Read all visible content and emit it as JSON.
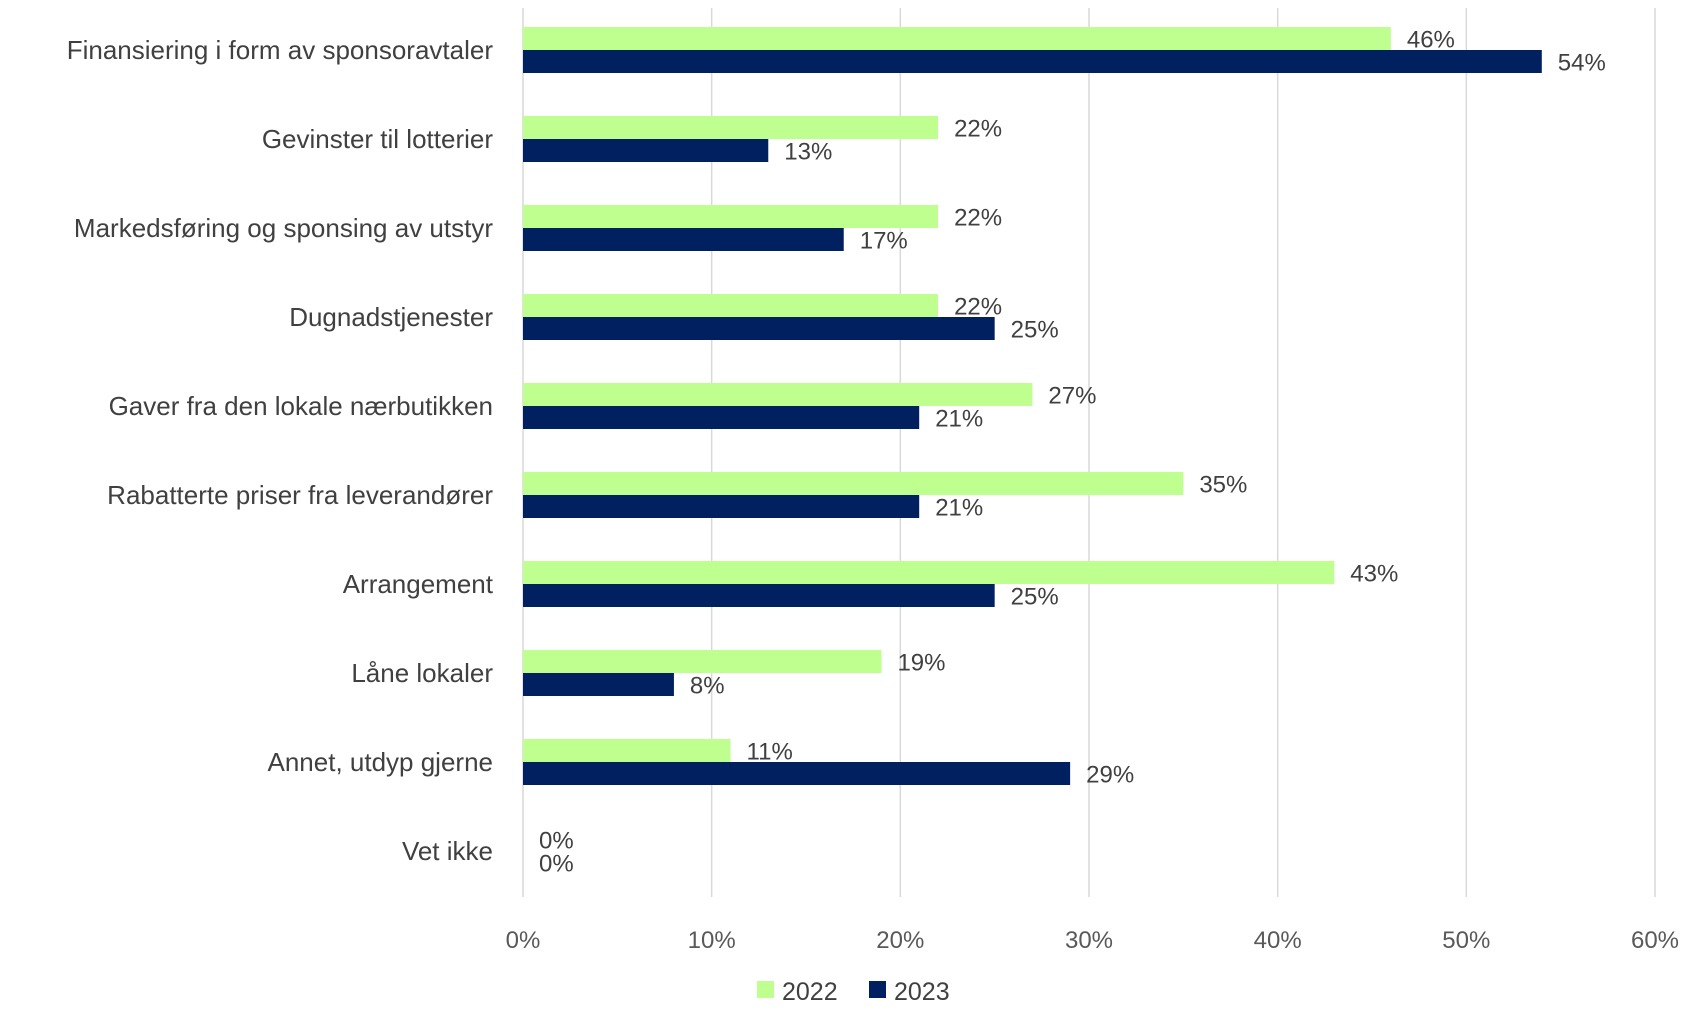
{
  "chart_data": {
    "type": "bar",
    "orientation": "horizontal",
    "title": "",
    "xlabel": "",
    "ylabel": "",
    "categories": [
      "Finansiering i form av sponsoravtaler",
      "Gevinster til lotterier",
      "Markedsføring og sponsing av utstyr",
      "Dugnadstjenester",
      "Gaver fra den lokale nærbutikken",
      "Rabatterte priser fra leverandører",
      "Arrangement",
      "Låne lokaler",
      "Annet, utdyp gjerne",
      "Vet ikke"
    ],
    "series": [
      {
        "name": "2022",
        "color": "#bfff8f",
        "values": [
          46,
          22,
          22,
          22,
          27,
          35,
          43,
          19,
          11,
          0
        ],
        "labels": [
          "46%",
          "22%",
          "22%",
          "22%",
          "27%",
          "35%",
          "43%",
          "19%",
          "11%",
          "0%"
        ]
      },
      {
        "name": "2023",
        "color": "#002060",
        "values": [
          54,
          13,
          17,
          25,
          21,
          21,
          25,
          8,
          29,
          0
        ],
        "labels": [
          "54%",
          "13%",
          "17%",
          "25%",
          "21%",
          "21%",
          "25%",
          "8%",
          "29%",
          "0%"
        ]
      }
    ],
    "xlim": [
      0,
      60
    ],
    "x_ticks": [
      "0%",
      "10%",
      "20%",
      "30%",
      "40%",
      "50%",
      "60%"
    ],
    "grid": "vertical",
    "legend_position": "bottom"
  }
}
